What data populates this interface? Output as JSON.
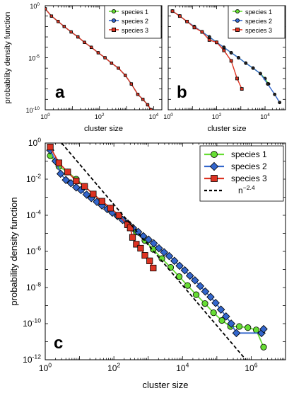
{
  "figure": {
    "ylabel": "probability density function",
    "xlabel": "cluster size"
  },
  "chart_data": [
    {
      "type": "line",
      "panel_label": "a",
      "xlabel": "cluster size",
      "ylabel": "probability density function",
      "xscale": "log",
      "yscale": "log",
      "xlim": [
        1,
        20000
      ],
      "ylim": [
        1e-10,
        1
      ],
      "xticks": [
        {
          "value": 1,
          "base": "10",
          "exp": "0"
        },
        {
          "value": 100,
          "base": "10",
          "exp": "2"
        },
        {
          "value": 10000,
          "base": "10",
          "exp": "4"
        }
      ],
      "yticks": [
        {
          "value": 1,
          "base": "10",
          "exp": "0"
        },
        {
          "value": 1e-05,
          "base": "10",
          "exp": "-5"
        },
        {
          "value": 1e-10,
          "base": "10",
          "exp": "-10"
        }
      ],
      "legend": {
        "placement": "top-right",
        "entries": [
          "species 1",
          "species 2",
          "species 3"
        ]
      },
      "series": [
        {
          "name": "species 1",
          "color": "#66dd33",
          "marker": "circle",
          "x": [
            1.0,
            1.7,
            3.0,
            5.0,
            9.0,
            16.0,
            28.0,
            50.0,
            90.0,
            160.0,
            280.0,
            500.0,
            900.0,
            1500.0,
            2600.0,
            4000.0,
            6000.0,
            8000.0
          ],
          "y": [
            0.5,
            0.1,
            0.03,
            0.01,
            0.003,
            0.001,
            0.0003,
            0.0001,
            3e-05,
            1e-05,
            3e-06,
            1e-06,
            2e-07,
            3e-08,
            3e-09,
            1e-09,
            3e-10,
            1e-10
          ]
        },
        {
          "name": "species 2",
          "color": "#3366cc",
          "marker": "circle",
          "x": [
            1.0,
            1.7,
            3.0,
            5.0,
            9.0,
            16.0,
            28.0,
            50.0,
            90.0,
            160.0,
            280.0,
            500.0,
            900.0,
            1500.0,
            2600.0,
            4000.0,
            6000.0,
            8000.0
          ],
          "y": [
            0.5,
            0.1,
            0.03,
            0.01,
            0.003,
            0.001,
            0.0003,
            0.0001,
            3e-05,
            1e-05,
            3e-06,
            1e-06,
            2e-07,
            3e-08,
            3e-09,
            1e-09,
            3e-10,
            1e-10
          ]
        },
        {
          "name": "species 3",
          "color": "#dd3322",
          "marker": "square",
          "x": [
            1.0,
            1.7,
            3.0,
            5.0,
            9.0,
            16.0,
            28.0,
            50.0,
            90.0,
            160.0,
            280.0,
            500.0,
            900.0,
            1500.0,
            2600.0,
            4000.0,
            6000.0,
            8000.0
          ],
          "y": [
            0.5,
            0.1,
            0.03,
            0.01,
            0.003,
            0.001,
            0.0003,
            0.0001,
            3e-05,
            1e-05,
            3e-06,
            1e-06,
            2e-07,
            3e-08,
            3e-09,
            1e-09,
            3e-10,
            1e-10
          ]
        }
      ]
    },
    {
      "type": "line",
      "panel_label": "b",
      "xlabel": "cluster size",
      "xscale": "log",
      "yscale": "log",
      "xlim": [
        1,
        70000
      ],
      "ylim": [
        1e-10,
        1
      ],
      "xticks": [
        {
          "value": 1,
          "base": "10",
          "exp": "0"
        },
        {
          "value": 100,
          "base": "10",
          "exp": "2"
        },
        {
          "value": 10000,
          "base": "10",
          "exp": "4"
        }
      ],
      "legend": {
        "placement": "top-right",
        "entries": [
          "species 1",
          "species 2",
          "species 3"
        ]
      },
      "series": [
        {
          "name": "species 1",
          "color": "#66dd33",
          "marker": "circle",
          "x": [
            1.5,
            3.0,
            6.0,
            12.0,
            25.0,
            50.0,
            100.0,
            200.0,
            400.0,
            800.0,
            1600.0,
            3200.0,
            6400.0,
            10000.0,
            14000.0
          ],
          "y": [
            0.3,
            0.1,
            0.03,
            0.01,
            0.003,
            0.001,
            0.0003,
            0.0001,
            3e-05,
            1e-05,
            3e-06,
            1e-06,
            3e-07,
            1e-07,
            3e-08
          ]
        },
        {
          "name": "species 2",
          "color": "#3366cc",
          "marker": "circle",
          "x": [
            1.5,
            3.0,
            6.0,
            12.0,
            25.0,
            50.0,
            100.0,
            200.0,
            400.0,
            800.0,
            1600.0,
            3200.0,
            6400.0,
            12800.0,
            25000.0,
            40000.0
          ],
          "y": [
            0.3,
            0.1,
            0.03,
            0.01,
            0.003,
            0.001,
            0.0003,
            0.0001,
            3e-05,
            1e-05,
            3e-06,
            1e-06,
            3e-07,
            3e-08,
            3e-09,
            5e-10
          ]
        },
        {
          "name": "species 3",
          "color": "#dd3322",
          "marker": "square",
          "x": [
            1.5,
            3.0,
            6.0,
            12.0,
            25.0,
            50.0,
            100.0,
            200.0,
            400.0,
            700.0,
            1100.0
          ],
          "y": [
            0.3,
            0.1,
            0.03,
            0.008,
            0.003,
            0.0005,
            0.0003,
            5e-05,
            5e-06,
            1e-07,
            1e-08
          ]
        }
      ]
    },
    {
      "type": "line",
      "panel_label": "c",
      "xlabel": "cluster size",
      "ylabel": "probability density function",
      "xscale": "log",
      "yscale": "log",
      "xlim": [
        1,
        10000000
      ],
      "ylim": [
        1e-12,
        1
      ],
      "xticks": [
        {
          "value": 1,
          "base": "10",
          "exp": "0"
        },
        {
          "value": 100,
          "base": "10",
          "exp": "2"
        },
        {
          "value": 10000,
          "base": "10",
          "exp": "4"
        },
        {
          "value": 1000000,
          "base": "10",
          "exp": "6"
        }
      ],
      "yticks": [
        {
          "value": 1,
          "base": "10",
          "exp": "0"
        },
        {
          "value": 0.01,
          "base": "10",
          "exp": "-2"
        },
        {
          "value": 0.0001,
          "base": "10",
          "exp": "-4"
        },
        {
          "value": 1e-06,
          "base": "10",
          "exp": "-6"
        },
        {
          "value": 1e-08,
          "base": "10",
          "exp": "-8"
        },
        {
          "value": 1e-10,
          "base": "10",
          "exp": "-10"
        },
        {
          "value": 1e-12,
          "base": "10",
          "exp": "-12"
        }
      ],
      "legend": {
        "placement": "top-right",
        "entries": [
          "species 1",
          "species 2",
          "species 3",
          "n"
        ],
        "fit_label": {
          "base": "n",
          "exp": "−2.4"
        }
      },
      "series": [
        {
          "name": "species 1",
          "color": "#66dd33",
          "marker": "circle",
          "x": [
            1.4,
            2.5,
            4.5,
            8.0,
            14.0,
            25.0,
            45.0,
            80.0,
            140.0,
            250.0,
            450.0,
            800.0,
            1400.0,
            2500.0,
            4500.0,
            8000.0,
            14000.0,
            25000.0,
            45000.0,
            80000.0,
            140000.0,
            250000.0,
            450000.0,
            800000.0,
            1400000.0,
            2300000.0
          ],
          "y": [
            0.2,
            0.05,
            0.025,
            0.01,
            0.004,
            0.0015,
            0.0006,
            0.00025,
            0.0001,
            3.5e-05,
            1.2e-05,
            4e-06,
            1.3e-06,
            4e-07,
            1.3e-07,
            4e-08,
            1.3e-08,
            4e-09,
            1.3e-09,
            4e-10,
            1.5e-10,
            7e-11,
            7e-11,
            6e-11,
            4.5e-11,
            5e-12
          ]
        },
        {
          "name": "species 2",
          "color": "#3366cc",
          "marker": "diamond",
          "x": [
            1.4,
            2.0,
            2.8,
            4.0,
            5.6,
            8.0,
            11.0,
            16.0,
            22.0,
            32.0,
            45.0,
            64.0,
            90.0,
            128.0,
            180.0,
            256.0,
            360.0,
            512.0,
            720.0,
            1024.0,
            1450.0,
            2048.0,
            2900.0,
            4096.0,
            5800.0,
            8192.0,
            11600.0,
            16384.0,
            23000.0,
            32768.0,
            46000.0,
            65536.0,
            92000.0,
            131072.0,
            185000.0,
            262144.0,
            370000.0,
            2000000.0,
            2300000.0
          ],
          "y": [
            0.4,
            0.1,
            0.02,
            0.009,
            0.006,
            0.0035,
            0.0025,
            0.0014,
            0.0009,
            0.00055,
            0.00035,
            0.00022,
            0.00014,
            9e-05,
            5.5e-05,
            3.5e-05,
            2e-05,
            1.2e-05,
            7e-06,
            4.5e-06,
            2.8e-06,
            1.5e-06,
            9e-07,
            5.5e-07,
            3e-07,
            1.6e-07,
            9e-08,
            4.5e-08,
            2.5e-08,
            1.2e-08,
            6e-09,
            3e-09,
            1.4e-09,
            6e-10,
            2.5e-10,
            1e-10,
            3e-11,
            3e-11,
            5e-11
          ]
        },
        {
          "name": "species 3",
          "color": "#dd3322",
          "marker": "square",
          "x": [
            1.4,
            2.5,
            4.5,
            8.0,
            14.0,
            25.0,
            45.0,
            80.0,
            140.0,
            250.0,
            300.0,
            350.0,
            450.0,
            600.0,
            800.0,
            1100.0,
            1400.0
          ],
          "y": [
            0.6,
            0.08,
            0.025,
            0.008,
            0.004,
            0.0015,
            0.0006,
            0.00025,
            0.0001,
            3e-05,
            2e-05,
            6e-06,
            2.5e-06,
            1.5e-06,
            6e-07,
            3e-07,
            1.2e-07
          ]
        },
        {
          "name": "n",
          "color": "#000000",
          "style": "dashed",
          "marker": "none",
          "x": [
            3.0,
            700000.0
          ],
          "y": [
            1.0,
            1e-12
          ]
        }
      ]
    }
  ]
}
